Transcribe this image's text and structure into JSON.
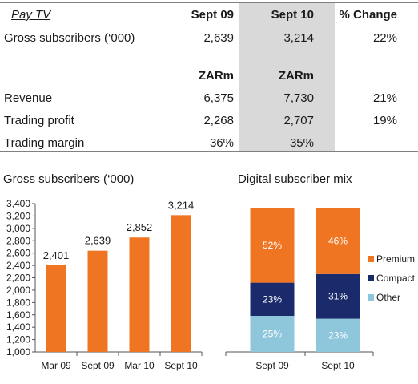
{
  "table": {
    "title": "Pay TV",
    "headers": [
      "Sept 09",
      "Sept 10",
      "% Change"
    ],
    "subscribers_row": {
      "label": "Gross subscribers (‘000)",
      "values": [
        "2,639",
        "3,214",
        "22%"
      ]
    },
    "unit_headers": [
      "ZARm",
      "ZARm"
    ],
    "rows": [
      {
        "label": "Revenue",
        "values": [
          "6,375",
          "7,730",
          "21%"
        ]
      },
      {
        "label": "Trading profit",
        "values": [
          "2,268",
          "2,707",
          "19%"
        ]
      },
      {
        "label": "Trading margin",
        "values": [
          "36%",
          "35%",
          ""
        ]
      }
    ]
  },
  "chart_data": [
    {
      "type": "bar",
      "title": "Gross subscribers (‘000)",
      "categories": [
        "Mar 09",
        "Sept 09",
        "Mar 10",
        "Sept 10"
      ],
      "values": [
        2401,
        2639,
        2852,
        3214
      ],
      "data_labels": [
        "2,401",
        "2,639",
        "2,852",
        "3,214"
      ],
      "ylim": [
        1000,
        3400
      ],
      "yticks": [
        "1,000",
        "1,200",
        "1,400",
        "1,600",
        "1,800",
        "2,000",
        "2,200",
        "2,400",
        "2,600",
        "2,800",
        "3,000",
        "3,200",
        "3,400"
      ],
      "color": "#f07522",
      "grid": false
    },
    {
      "type": "bar",
      "stacked": true,
      "title": "Digital subscriber mix",
      "categories": [
        "Sept 09",
        "Sept 10"
      ],
      "series": [
        {
          "name": "Premium",
          "values": [
            52,
            46
          ],
          "labels": [
            "52%",
            "46%"
          ],
          "color": "#f07522"
        },
        {
          "name": "Compact",
          "values": [
            23,
            31
          ],
          "labels": [
            "23%",
            "31%"
          ],
          "color": "#1b2a6b"
        },
        {
          "name": "Other",
          "values": [
            25,
            23
          ],
          "labels": [
            "25%",
            "23%"
          ],
          "color": "#8ec6dc"
        }
      ],
      "legend": "right"
    }
  ]
}
